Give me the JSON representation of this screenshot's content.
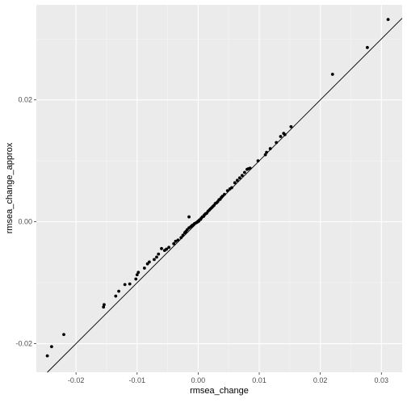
{
  "chart_data": {
    "type": "scatter",
    "title": "",
    "xlabel": "rmsea_change",
    "ylabel": "rmsea_change_approx",
    "xlim": [
      -0.0265,
      0.0334
    ],
    "ylim": [
      -0.0247,
      0.0356
    ],
    "x_ticks": [
      -0.02,
      -0.01,
      0.0,
      0.01,
      0.02,
      0.03
    ],
    "x_tick_labels": [
      "-0.02",
      "-0.01",
      "0.00",
      "0.01",
      "0.02",
      "0.03"
    ],
    "y_ticks": [
      -0.02,
      0.0,
      0.02
    ],
    "y_tick_labels": [
      "-0.02",
      "0.00",
      "0.02"
    ],
    "grid": true,
    "background": "#ebebeb",
    "grid_major_color": "#ffffff",
    "point_color": "#000000",
    "reference_line": {
      "type": "identity",
      "slope": 1,
      "intercept": 0,
      "color": "#000000"
    },
    "points": [
      [
        -0.0247,
        -0.022
      ],
      [
        -0.024,
        -0.0205
      ],
      [
        -0.022,
        -0.0185
      ],
      [
        -0.0155,
        -0.014
      ],
      [
        -0.0154,
        -0.0136
      ],
      [
        -0.0135,
        -0.0122
      ],
      [
        -0.013,
        -0.0114
      ],
      [
        -0.012,
        -0.0103
      ],
      [
        -0.0112,
        -0.0102
      ],
      [
        -0.0102,
        -0.0094
      ],
      [
        -0.01,
        -0.0087
      ],
      [
        -0.0098,
        -0.0083
      ],
      [
        -0.0088,
        -0.0076
      ],
      [
        -0.0083,
        -0.0069
      ],
      [
        -0.008,
        -0.0066
      ],
      [
        -0.0072,
        -0.0062
      ],
      [
        -0.0068,
        -0.0058
      ],
      [
        -0.0065,
        -0.0053
      ],
      [
        -0.006,
        -0.0044
      ],
      [
        -0.0055,
        -0.0047
      ],
      [
        -0.0052,
        -0.0045
      ],
      [
        -0.0048,
        -0.0042
      ],
      [
        -0.004,
        -0.0036
      ],
      [
        -0.0037,
        -0.0032
      ],
      [
        -0.0033,
        -0.003
      ],
      [
        -0.0028,
        -0.0026
      ],
      [
        -0.0025,
        -0.0022
      ],
      [
        -0.0022,
        -0.0018
      ],
      [
        -0.002,
        -0.0016
      ],
      [
        -0.0018,
        -0.0013
      ],
      [
        -0.0015,
        -0.001
      ],
      [
        -0.0012,
        -0.0008
      ],
      [
        -0.001,
        -0.0006
      ],
      [
        -0.0008,
        -0.0005
      ],
      [
        -0.0006,
        -0.0003
      ],
      [
        -0.0004,
        -0.0002
      ],
      [
        -0.0002,
        -0.0001
      ],
      [
        -0.0001,
        0.0
      ],
      [
        0.0,
        0.0001
      ],
      [
        0.0001,
        0.0001
      ],
      [
        0.0002,
        0.0003
      ],
      [
        0.0004,
        0.0004
      ],
      [
        0.0005,
        0.0006
      ],
      [
        0.0007,
        0.0008
      ],
      [
        0.0009,
        0.0009
      ],
      [
        0.001,
        0.0011
      ],
      [
        0.0012,
        0.0013
      ],
      [
        0.0014,
        0.0014
      ],
      [
        0.0016,
        0.0017
      ],
      [
        0.0018,
        0.0019
      ],
      [
        0.002,
        0.0021
      ],
      [
        0.0022,
        0.0023
      ],
      [
        0.0024,
        0.0025
      ],
      [
        0.0026,
        0.0027
      ],
      [
        0.0028,
        0.003
      ],
      [
        0.003,
        0.0031
      ],
      [
        0.0032,
        0.0033
      ],
      [
        0.0034,
        0.0036
      ],
      [
        0.0036,
        0.0037
      ],
      [
        0.0038,
        0.004
      ],
      [
        0.004,
        0.0042
      ],
      [
        0.0043,
        0.0045
      ],
      [
        -0.0015,
        0.0008
      ],
      [
        0.0048,
        0.0051
      ],
      [
        0.0052,
        0.0054
      ],
      [
        0.0055,
        0.0056
      ],
      [
        0.006,
        0.0064
      ],
      [
        0.0064,
        0.0068
      ],
      [
        0.0068,
        0.0072
      ],
      [
        0.0072,
        0.0076
      ],
      [
        0.0076,
        0.0081
      ],
      [
        0.008,
        0.0086
      ],
      [
        0.0082,
        0.0087
      ],
      [
        0.0085,
        0.0088
      ],
      [
        0.0098,
        0.01
      ],
      [
        0.011,
        0.011
      ],
      [
        0.0112,
        0.0114
      ],
      [
        0.0118,
        0.012
      ],
      [
        0.0128,
        0.013
      ],
      [
        0.0135,
        0.014
      ],
      [
        0.014,
        0.0145
      ],
      [
        0.0142,
        0.0143
      ],
      [
        0.0152,
        0.0156
      ],
      [
        0.022,
        0.0242
      ],
      [
        0.0277,
        0.0286
      ],
      [
        0.0311,
        0.0332
      ]
    ]
  }
}
